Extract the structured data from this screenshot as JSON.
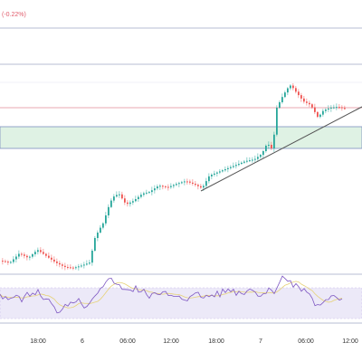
{
  "header": {
    "price_change": "(-0.22%)"
  },
  "colors": {
    "background": "#ffffff",
    "up_candle": "#26a69a",
    "down_candle": "#ef5350",
    "separator": "#9fa6c4",
    "price_line": "#e08a97",
    "support_zone_fill": "#dff2e4",
    "support_zone_border": "#7e8fbf",
    "trendline": "#555555",
    "rsi_fill": "#ece9f8",
    "rsi_line": "#7e57c2",
    "rsi_ma_line": "#e6d277",
    "rsi_band_border": "#c9c0ea"
  },
  "chart_data": {
    "type": "candlestick",
    "x_axis_labels": [
      "18:00",
      "6",
      "06:00",
      "12:00",
      "18:00",
      "7",
      "06:00",
      "12:00"
    ],
    "indicator": "RSI",
    "trendline": true,
    "support_zone": true,
    "grid": false
  }
}
